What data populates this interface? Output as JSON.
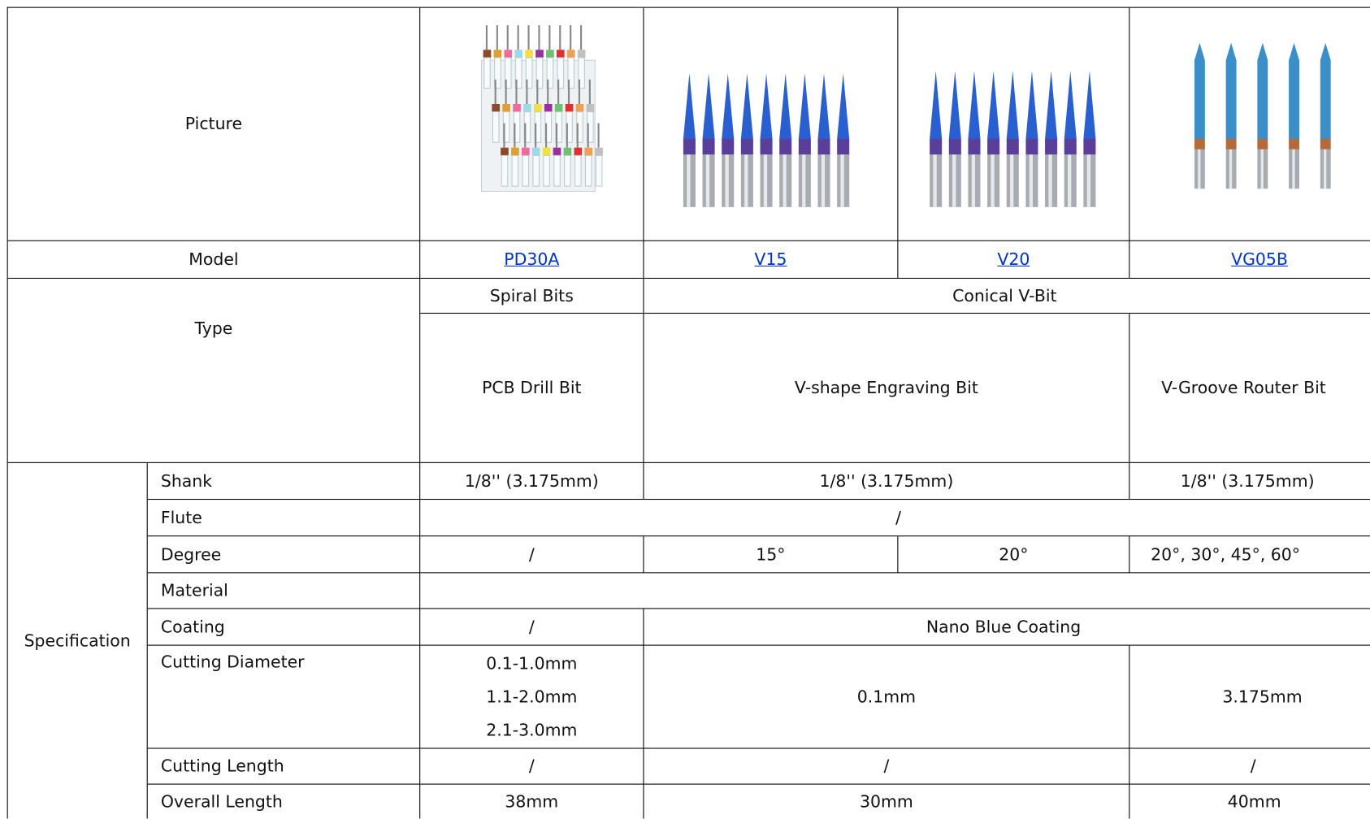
{
  "picture_label": "Picture",
  "model": {
    "label": "Model",
    "items": [
      "PD30A",
      "V15",
      "V20",
      "VG05B"
    ]
  },
  "type": {
    "label": "Type",
    "groups": [
      "Spiral Bits",
      "Conical V-Bit"
    ],
    "names": [
      "PCB Drill Bit",
      "V-shape Engraving Bit",
      "V-Groove Router Bit"
    ]
  },
  "specification": {
    "label": "Specification",
    "rows": [
      {
        "label": "Shank",
        "values": [
          "1/8'' (3.175mm)",
          "1/8'' (3.175mm)",
          "1/8'' (3.175mm)"
        ]
      },
      {
        "label": "Flute",
        "values": [
          "/"
        ]
      },
      {
        "label": "Degree",
        "values": [
          "/",
          "15°",
          "20°",
          "20°, 30°, 45°, 60°"
        ]
      },
      {
        "label": "Material"
      },
      {
        "label": "Coating",
        "values": [
          "/",
          "Nano Blue Coating"
        ]
      },
      {
        "label": "Cutting Diameter",
        "values": [
          [
            "0.1-1.0mm",
            "1.1-2.0mm",
            "2.1-3.0mm"
          ],
          "0.1mm",
          "3.175mm"
        ]
      },
      {
        "label": "Cutting Length",
        "values": [
          "/",
          "/",
          "/"
        ]
      },
      {
        "label": "Overall Length",
        "values": [
          "38mm",
          "30mm",
          "40mm"
        ]
      }
    ]
  }
}
